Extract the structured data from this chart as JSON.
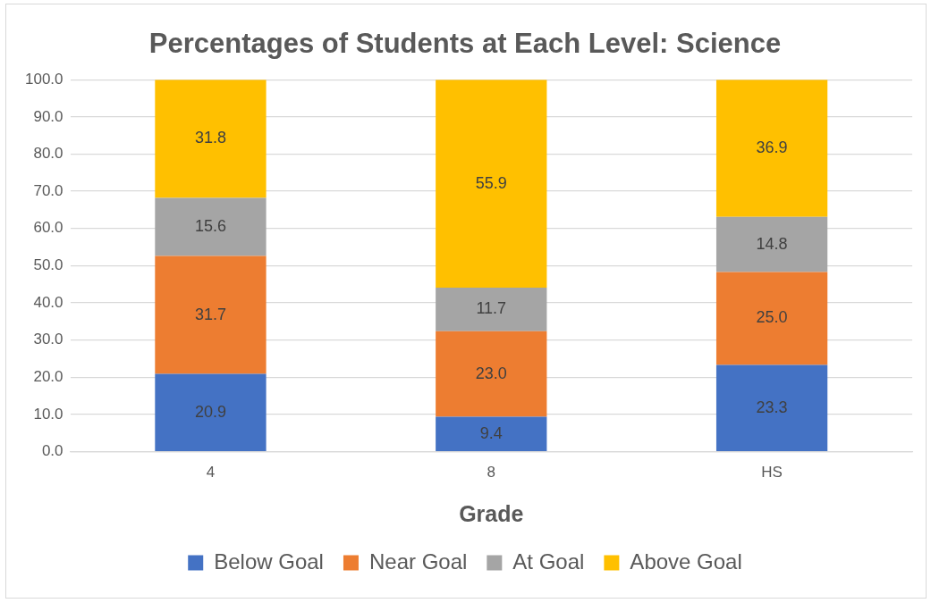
{
  "chart_data": {
    "type": "bar",
    "title": "Percentages of Students at Each Level: Science",
    "xlabel": "Grade",
    "categories": [
      "4",
      "8",
      "HS"
    ],
    "stacked": true,
    "grid": "y",
    "legend": "bottom",
    "ylim": [
      0,
      100
    ],
    "yticks": [
      {
        "value": 0,
        "label": "0.0"
      },
      {
        "value": 10,
        "label": "10.0"
      },
      {
        "value": 20,
        "label": "20.0"
      },
      {
        "value": 30,
        "label": "30.0"
      },
      {
        "value": 40,
        "label": "40.0"
      },
      {
        "value": 50,
        "label": "50.0"
      },
      {
        "value": 60,
        "label": "60.0"
      },
      {
        "value": 70,
        "label": "70.0"
      },
      {
        "value": 80,
        "label": "80.0"
      },
      {
        "value": 90,
        "label": "90.0"
      },
      {
        "value": 100,
        "label": "100.0"
      }
    ],
    "series": [
      {
        "name": "Below Goal",
        "color": "#4472c4",
        "values": [
          20.9,
          9.4,
          23.3
        ],
        "value_labels": [
          "20.9",
          "9.4",
          "23.3"
        ]
      },
      {
        "name": "Near Goal",
        "color": "#ed7d31",
        "values": [
          31.7,
          23,
          25
        ],
        "value_labels": [
          "31.7",
          "23.0",
          "25.0"
        ]
      },
      {
        "name": "At Goal",
        "color": "#a5a5a5",
        "values": [
          15.6,
          11.7,
          14.8
        ],
        "value_labels": [
          "15.6",
          "11.7",
          "14.8"
        ]
      },
      {
        "name": "Above Goal",
        "color": "#ffc000",
        "values": [
          31.8,
          55.9,
          36.9
        ],
        "value_labels": [
          "31.8",
          "55.9",
          "36.9"
        ]
      }
    ]
  }
}
